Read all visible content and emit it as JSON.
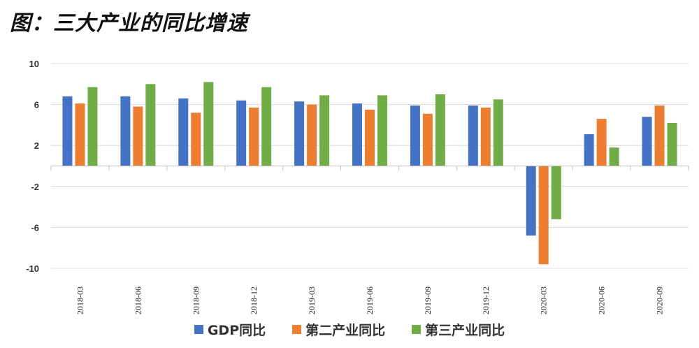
{
  "title": "图：三大产业的同比增速",
  "chart_data": {
    "type": "bar",
    "title": "图：三大产业的同比增速",
    "xlabel": "",
    "ylabel": "",
    "categories": [
      "2018-03",
      "2018-06",
      "2018-09",
      "2018-12",
      "2019-03",
      "2019-06",
      "2019-09",
      "2019-12",
      "2020-03",
      "2020-06",
      "2020-09"
    ],
    "ylim": [
      -10,
      10
    ],
    "yticks": [
      10,
      6,
      2,
      -2,
      -6,
      -10
    ],
    "ytick_labels": [
      "10",
      "6",
      "2",
      "-2",
      "-6",
      "-10"
    ],
    "grid": true,
    "legend_position": "bottom",
    "series": [
      {
        "name": "GDP同比",
        "color": "#4472C4",
        "values": [
          6.8,
          6.8,
          6.6,
          6.4,
          6.3,
          6.1,
          5.9,
          5.9,
          -6.8,
          3.1,
          4.8
        ]
      },
      {
        "name": "第二产业同比",
        "color": "#ED7D31",
        "values": [
          6.1,
          5.8,
          5.2,
          5.7,
          6.0,
          5.5,
          5.1,
          5.7,
          -9.6,
          4.6,
          5.9
        ]
      },
      {
        "name": "第三产业同比",
        "color": "#70AD47",
        "values": [
          7.7,
          8.0,
          8.2,
          7.7,
          6.9,
          6.9,
          7.0,
          6.5,
          -5.2,
          1.8,
          4.2
        ]
      }
    ]
  }
}
